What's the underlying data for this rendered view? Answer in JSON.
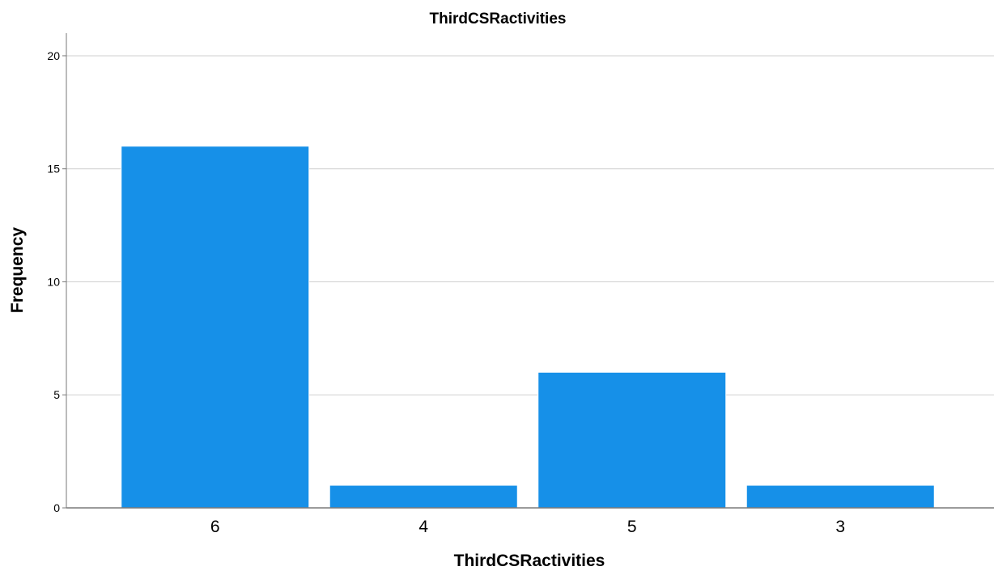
{
  "chart_data": {
    "type": "bar",
    "title": "ThirdCSRactivities",
    "xlabel": "ThirdCSRactivities",
    "ylabel": "Frequency",
    "categories": [
      "6",
      "4",
      "5",
      "3"
    ],
    "values": [
      16,
      1,
      6,
      1
    ],
    "ylim": [
      0,
      21
    ],
    "yticks": [
      "0",
      "5",
      "10",
      "15",
      "20"
    ],
    "grid": true,
    "legend": "none",
    "bar_color": "#1690E8",
    "bar_edge_color": "#ffffff",
    "grid_color": "#CFCFCF",
    "axis_color": "#7A7A7A"
  }
}
